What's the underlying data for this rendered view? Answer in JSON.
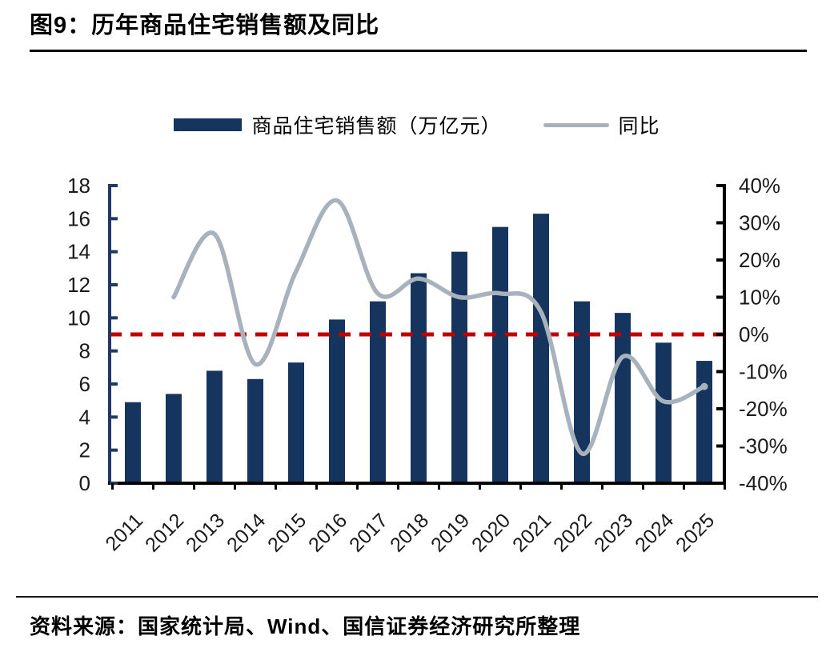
{
  "figure": {
    "title": "图9：历年商品住宅销售额及同比",
    "source": "资料来源：国家统计局、Wind、国信证券经济研究所整理"
  },
  "legend": {
    "bars_label": "商品住宅销售额（万亿元）",
    "line_label": "同比"
  },
  "colors": {
    "bar": "#16355e",
    "line": "#a8b2bd",
    "zero_line": "#c00000",
    "left_axis": "#1f3864",
    "right_axis": "#000000",
    "bottom_axis": "#000000",
    "tick_text": "#1a1a1a"
  },
  "chart_data": {
    "type": "bar",
    "categories": [
      "2011",
      "2012",
      "2013",
      "2014",
      "2015",
      "2016",
      "2017",
      "2018",
      "2019",
      "2020",
      "2021",
      "2022",
      "2023",
      "2024",
      "2025"
    ],
    "series": [
      {
        "name": "商品住宅销售额（万亿元）",
        "type": "bar",
        "axis": "left",
        "values": [
          4.9,
          5.4,
          6.8,
          6.3,
          7.3,
          9.9,
          11.0,
          12.7,
          14.0,
          15.5,
          16.3,
          11.0,
          10.3,
          8.5,
          7.4
        ]
      },
      {
        "name": "同比",
        "type": "line",
        "axis": "right",
        "unit": "%",
        "values": [
          null,
          10,
          27,
          -8,
          17,
          36,
          11,
          15,
          10,
          11,
          6,
          -32,
          -6,
          -18,
          -14
        ]
      }
    ],
    "left_axis": {
      "min": 0,
      "max": 18,
      "step": 2,
      "tick_labels": [
        "0",
        "2",
        "4",
        "6",
        "8",
        "10",
        "12",
        "14",
        "16",
        "18"
      ]
    },
    "right_axis": {
      "min": -40,
      "max": 40,
      "step": 10,
      "tick_labels": [
        "-40%",
        "-30%",
        "-20%",
        "-10%",
        "0%",
        "10%",
        "20%",
        "30%",
        "40%"
      ]
    },
    "reference_line": {
      "axis": "right",
      "value": 0,
      "style": "dashed"
    },
    "grid": false,
    "legend_position": "top",
    "title": "图9：历年商品住宅销售额及同比",
    "xlabel": "",
    "ylabel_left": "万亿元",
    "ylabel_right": "%"
  }
}
